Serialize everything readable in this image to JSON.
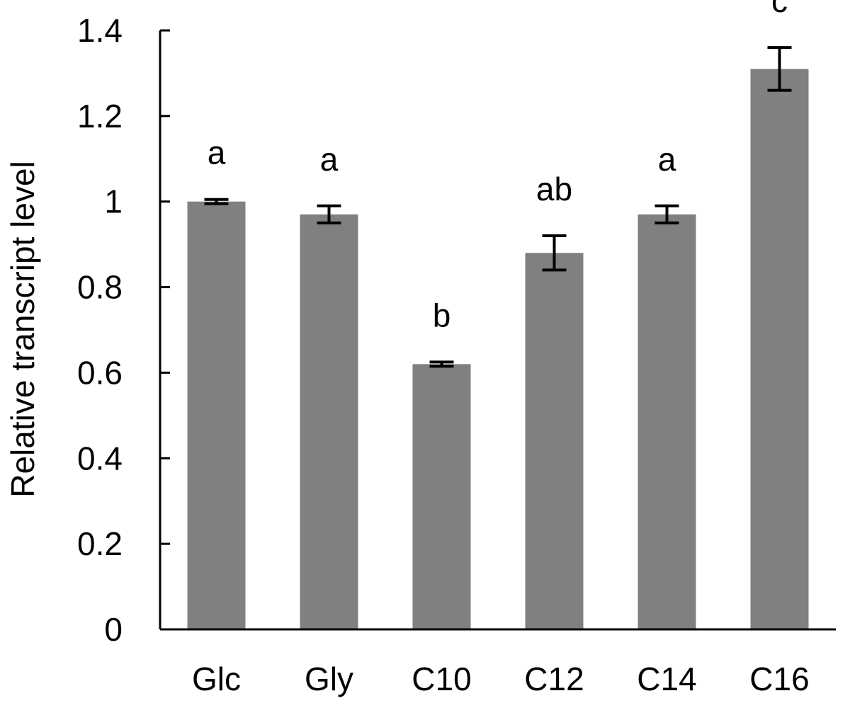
{
  "chart_data": {
    "type": "bar",
    "ylabel": "Relative transcript level",
    "ylim": [
      0,
      1.4
    ],
    "yticks": [
      "0",
      "0.2",
      "0.4",
      "0.6",
      "0.8",
      "1",
      "1.2",
      "1.4"
    ],
    "categories": [
      "Glc",
      "Gly",
      "C10",
      "C12",
      "C14",
      "C16"
    ],
    "values": [
      1.0,
      0.97,
      0.62,
      0.88,
      0.97,
      1.31
    ],
    "errors": [
      0.005,
      0.02,
      0.005,
      0.04,
      0.02,
      0.05
    ],
    "significance": [
      "a",
      "a",
      "b",
      "ab",
      "a",
      "c"
    ],
    "bar_color": "#808080"
  }
}
